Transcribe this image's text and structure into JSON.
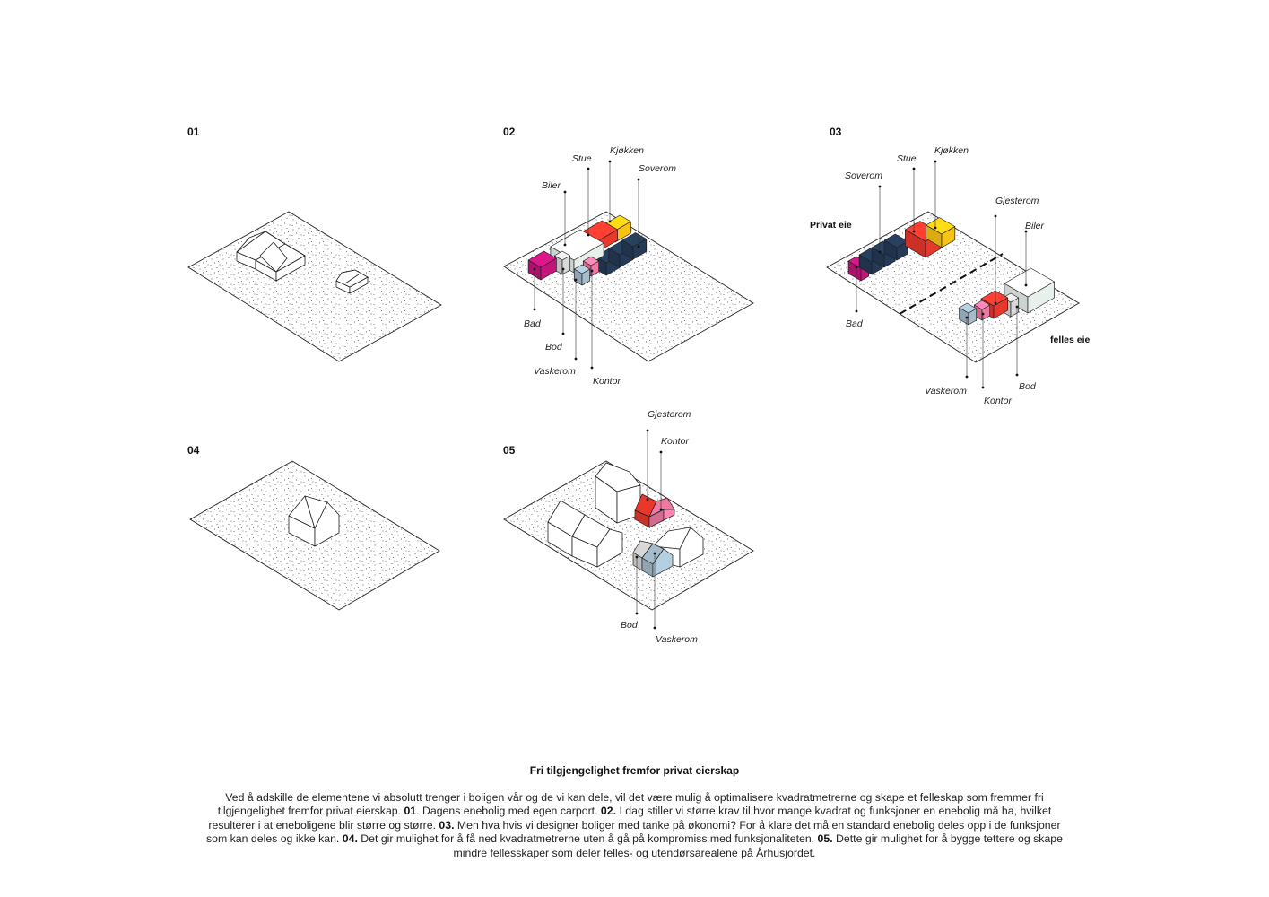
{
  "panels": [
    {
      "number": "01",
      "labels": []
    },
    {
      "number": "02",
      "labels": [
        "Stue",
        "Kjøkken",
        "Soverom",
        "Biler",
        "Bad",
        "Bod",
        "Vaskerom",
        "Kontor"
      ]
    },
    {
      "number": "03",
      "labels": [
        "Stue",
        "Kjøkken",
        "Soverom",
        "Gjesterom",
        "Biler",
        "Bad",
        "Vaskerom",
        "Kontor",
        "Bod"
      ],
      "zones": [
        "Privat eie",
        "felles eie"
      ]
    },
    {
      "number": "04",
      "labels": []
    },
    {
      "number": "05",
      "labels": [
        "Gjesterom",
        "Kontor",
        "Bod",
        "Vaskerom"
      ]
    }
  ],
  "colors": {
    "stue": "#e8382c",
    "kjokken": "#f8c414",
    "soverom": "#243a56",
    "bad": "#c4147c",
    "kontor": "#ee7aa4",
    "vaskerom": "#a4bccc",
    "bod": "#d8d8d8",
    "biler": "#e8f0ec",
    "gjesterom": "#e8382c"
  },
  "caption": {
    "title": "Fri tilgjengelighet fremfor privat eierskap",
    "p01": "Ved å adskille de elementene vi absolutt trenger i boligen vår og de vi kan dele, vil det være mulig å optimalisere kvadratmetrerne og skape et felleskap som fremmer fri tilgjengelighet fremfor privat eierskap. ",
    "b01": "01",
    "p02": ". Dagens enebolig med egen carport. ",
    "b02": "02.",
    "p03": " I dag stiller vi større krav til hvor mange kvadrat og funksjoner en enebolig må ha, hvilket resulterer i at eneboligene blir større og større. ",
    "b03": "03.",
    "p04": " Men hva hvis vi designer boliger med tanke på økonomi? For å klare det må en standard enebolig deles opp i de funksjoner som kan deles og ikke kan. ",
    "b04": "04.",
    "p05": " Det gir mulighet for å få ned kvadratmetrerne uten å gå på kompromiss med funksjonaliteten. ",
    "b05": "05.",
    "p06": " Dette gir mulighet for å bygge tettere og skape mindre fellesskaper som deler felles- og utendørsarealene på Århusjordet."
  }
}
